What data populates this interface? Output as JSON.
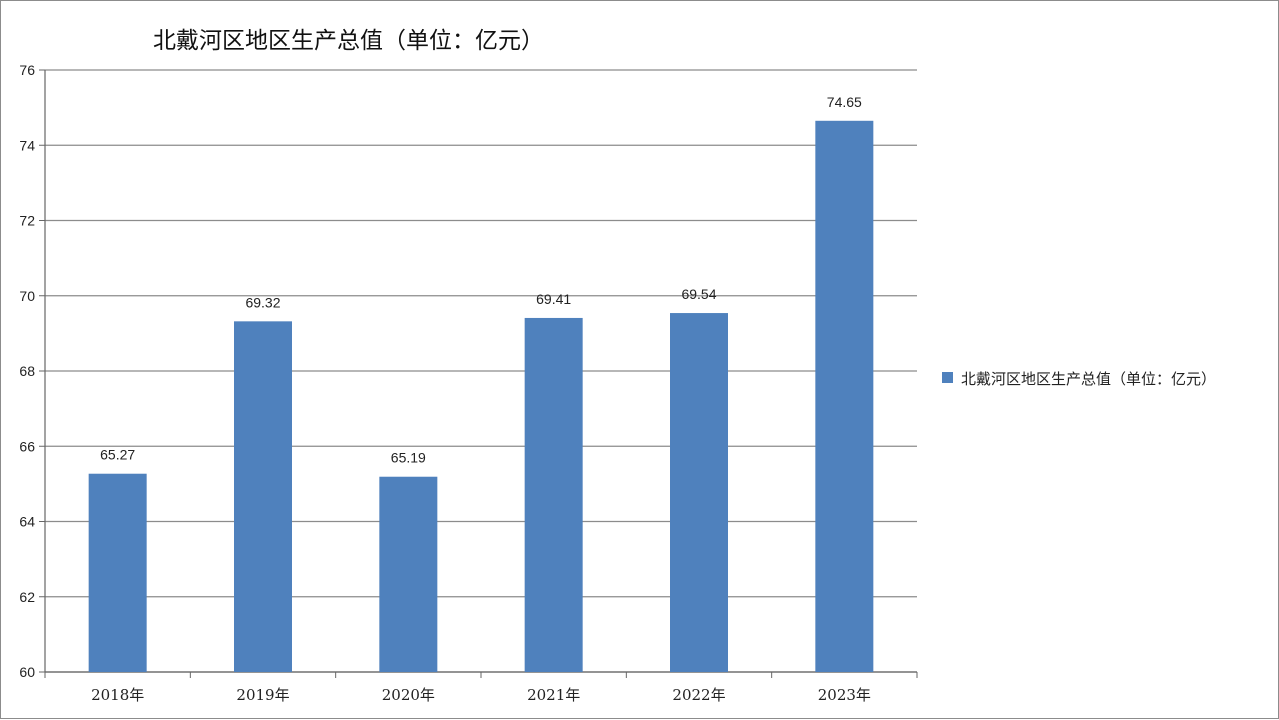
{
  "chart_data": {
    "type": "bar",
    "title": "北戴河区地区生产总值（单位：亿元）",
    "xlabel": "",
    "ylabel": "",
    "categories": [
      "2018年",
      "2019年",
      "2020年",
      "2021年",
      "2022年",
      "2023年"
    ],
    "series": [
      {
        "name": "北戴河区地区生产总值（单位：亿元）",
        "values": [
          65.27,
          69.32,
          65.19,
          69.41,
          69.54,
          74.65
        ],
        "data_labels": [
          "65.27",
          "69.32",
          "65.19",
          "69.41",
          "69.54",
          "74.65"
        ],
        "color": "#4f81bd"
      }
    ],
    "ylim": [
      60,
      76
    ],
    "yticks": [
      60,
      62,
      64,
      66,
      68,
      70,
      72,
      74,
      76
    ],
    "grid": true,
    "legend_position": "right",
    "colors": {
      "bar": "#4f81bd",
      "grid": "#8c8c8c",
      "axis": "#666666"
    }
  }
}
